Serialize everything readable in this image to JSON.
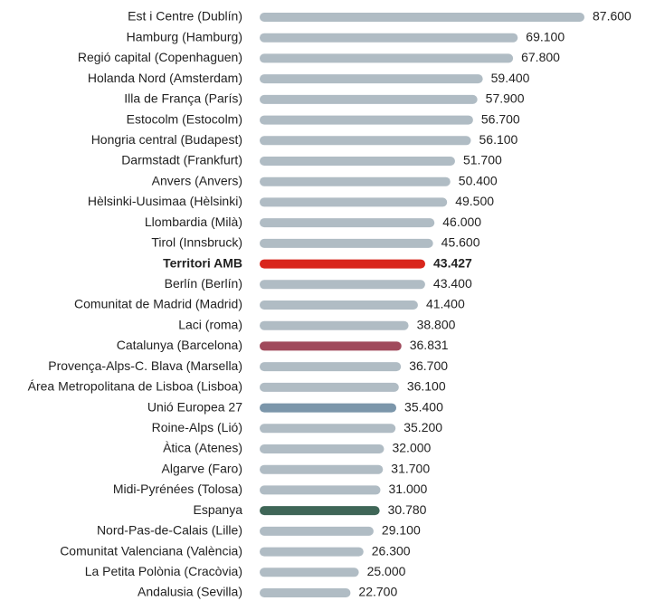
{
  "chart_data": {
    "type": "barh",
    "categories": [
      "Est i Centre (Dublín)",
      "Hamburg (Hamburg)",
      "Regió capital (Copenhaguen)",
      "Holanda Nord (Amsterdam)",
      "Illa de França (París)",
      "Estocolm (Estocolm)",
      "Hongria central (Budapest)",
      "Darmstadt (Frankfurt)",
      "Anvers (Anvers)",
      "Hèlsinki-Uusimaa (Hèlsinki)",
      "Llombardia (Milà)",
      "Tirol (Innsbruck)",
      "Territori AMB",
      "Berlín (Berlín)",
      "Comunitat de Madrid (Madrid)",
      "Laci (roma)",
      "Catalunya (Barcelona)",
      "Provença-Alps-C. Blava (Marsella)",
      "Área Metropolitana de Lisboa (Lisboa)",
      "Unió Europea 27",
      "Roine-Alps (Lió)",
      "Àtica (Atenes)",
      "Algarve (Faro)",
      "Midi-Pyrénées (Tolosa)",
      "Espanya",
      "Nord-Pas-de-Calais (Lille)",
      "Comunitat Valenciana (València)",
      "La Petita Polònia (Cracòvia)",
      "Andalusia (Sevilla)"
    ],
    "values": [
      87600,
      69100,
      67800,
      59400,
      57900,
      56700,
      56100,
      51700,
      50400,
      49500,
      46000,
      45600,
      43427,
      43400,
      41400,
      38800,
      36831,
      36700,
      36100,
      35400,
      35200,
      32000,
      31700,
      31000,
      30780,
      29100,
      26300,
      25000,
      22700
    ],
    "value_labels": [
      "87.600",
      "69.100",
      "67.800",
      "59.400",
      "57.900",
      "56.700",
      "56.100",
      "51.700",
      "50.400",
      "49.500",
      "46.000",
      "45.600",
      "43.427",
      "43.400",
      "41.400",
      "38.800",
      "36.831",
      "36.700",
      "36.100",
      "35.400",
      "35.200",
      "32.000",
      "31.700",
      "31.000",
      "30.780",
      "29.100",
      "26.300",
      "25.000",
      "22.700"
    ],
    "colors": [
      "#b0bcc4",
      "#b0bcc4",
      "#b0bcc4",
      "#b0bcc4",
      "#b0bcc4",
      "#b0bcc4",
      "#b0bcc4",
      "#b0bcc4",
      "#b0bcc4",
      "#b0bcc4",
      "#b0bcc4",
      "#b0bcc4",
      "#d9261c",
      "#b0bcc4",
      "#b0bcc4",
      "#b0bcc4",
      "#a04a5c",
      "#b0bcc4",
      "#b0bcc4",
      "#7b96aa",
      "#b0bcc4",
      "#b0bcc4",
      "#b0bcc4",
      "#b0bcc4",
      "#3f6657",
      "#b0bcc4",
      "#b0bcc4",
      "#b0bcc4",
      "#b0bcc4"
    ],
    "highlight": 12
  }
}
